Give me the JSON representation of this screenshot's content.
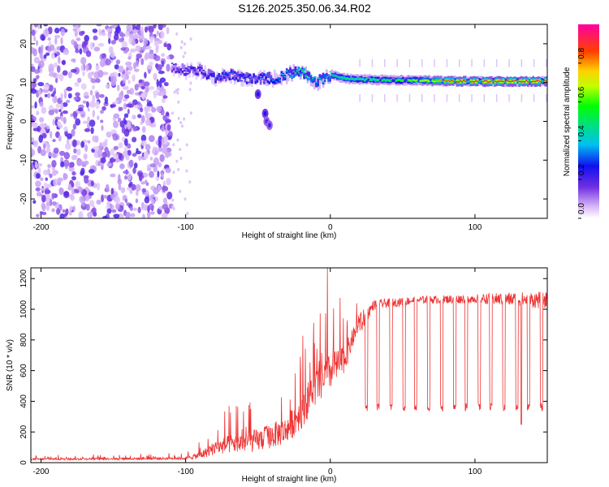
{
  "title": "S126.2025.350.06.34.R02",
  "chart_data": [
    {
      "type": "heatmap",
      "xlabel": "Height of straight line (km)",
      "ylabel": "Frequency (Hz)",
      "xlim": [
        -207,
        150
      ],
      "ylim": [
        -25,
        25
      ],
      "xticks": [
        -200,
        -100,
        0,
        100
      ],
      "yticks": [
        -20,
        -10,
        0,
        10,
        20
      ],
      "colorbar": {
        "label": "Normalized spectral amplitude",
        "range": [
          0,
          1
        ],
        "ticks": [
          "0.0",
          "0.2",
          "0.4",
          "0.6",
          "0.8"
        ],
        "tick_values": [
          0,
          0.2,
          0.4,
          0.6,
          0.8
        ]
      },
      "noise_region_x": [
        -207,
        -110
      ],
      "ridge": [
        {
          "x": -110,
          "f": 14,
          "amp": 0.2
        },
        {
          "x": -100,
          "f": 13,
          "amp": 0.25
        },
        {
          "x": -90,
          "f": 13,
          "amp": 0.25
        },
        {
          "x": -80,
          "f": 11,
          "amp": 0.3
        },
        {
          "x": -70,
          "f": 12,
          "amp": 0.3
        },
        {
          "x": -60,
          "f": 11,
          "amp": 0.3
        },
        {
          "x": -50,
          "f": 11,
          "amp": 0.3
        },
        {
          "x": -40,
          "f": 11,
          "amp": 0.35
        },
        {
          "x": -30,
          "f": 12,
          "amp": 0.4
        },
        {
          "x": -20,
          "f": 13,
          "amp": 0.5
        },
        {
          "x": -10,
          "f": 10,
          "amp": 0.4
        },
        {
          "x": 0,
          "f": 12,
          "amp": 0.45
        },
        {
          "x": 10,
          "f": 11,
          "amp": 0.5
        },
        {
          "x": 20,
          "f": 10.8,
          "amp": 0.5
        },
        {
          "x": 40,
          "f": 10.6,
          "amp": 0.55
        },
        {
          "x": 60,
          "f": 10.5,
          "amp": 0.65
        },
        {
          "x": 80,
          "f": 10.4,
          "amp": 0.85
        },
        {
          "x": 100,
          "f": 10.3,
          "amp": 0.9
        },
        {
          "x": 120,
          "f": 10.3,
          "amp": 0.9
        },
        {
          "x": 150,
          "f": 10.3,
          "amp": 0.9
        }
      ],
      "branch": [
        {
          "x": -50,
          "f": 7,
          "amp": 0.25
        },
        {
          "x": -45,
          "f": 2,
          "amp": 0.25
        },
        {
          "x": -44,
          "f": 0,
          "amp": 0.2
        },
        {
          "x": -42,
          "f": -1,
          "amp": 0.2
        }
      ]
    },
    {
      "type": "line",
      "xlabel": "Height of straight line (km)",
      "ylabel": "SNR (10 * v/v)",
      "xlim": [
        -207,
        150
      ],
      "ylim": [
        0,
        1270
      ],
      "xticks": [
        -200,
        -100,
        0,
        100
      ],
      "yticks": [
        0,
        200,
        400,
        600,
        800,
        1000,
        1200
      ],
      "color": "#ee3333",
      "envelope": [
        {
          "x": -207,
          "base": 20,
          "spread": 20
        },
        {
          "x": -100,
          "base": 25,
          "spread": 30
        },
        {
          "x": -90,
          "base": 40,
          "spread": 80
        },
        {
          "x": -80,
          "base": 80,
          "spread": 150
        },
        {
          "x": -70,
          "base": 100,
          "spread": 200
        },
        {
          "x": -50,
          "base": 120,
          "spread": 250
        },
        {
          "x": -30,
          "base": 180,
          "spread": 300
        },
        {
          "x": -20,
          "base": 300,
          "spread": 400
        },
        {
          "x": -10,
          "base": 450,
          "spread": 400
        },
        {
          "x": 0,
          "base": 550,
          "spread": 400
        },
        {
          "x": 10,
          "base": 650,
          "spread": 300
        },
        {
          "x": 20,
          "base": 900,
          "spread": 150
        },
        {
          "x": 30,
          "base": 1030,
          "spread": 60
        },
        {
          "x": 60,
          "base": 1060,
          "spread": 50
        },
        {
          "x": 100,
          "base": 1070,
          "spread": 60
        },
        {
          "x": 150,
          "base": 1060,
          "spread": 120
        }
      ],
      "dropout_level": 360,
      "dropouts_x": [
        25,
        33,
        42,
        51,
        59,
        68,
        77,
        86,
        94,
        103,
        111,
        120,
        129,
        137,
        146
      ],
      "spike_x": -2,
      "spike_y": 1270,
      "dip_x": 132,
      "dip_y": 250
    }
  ]
}
